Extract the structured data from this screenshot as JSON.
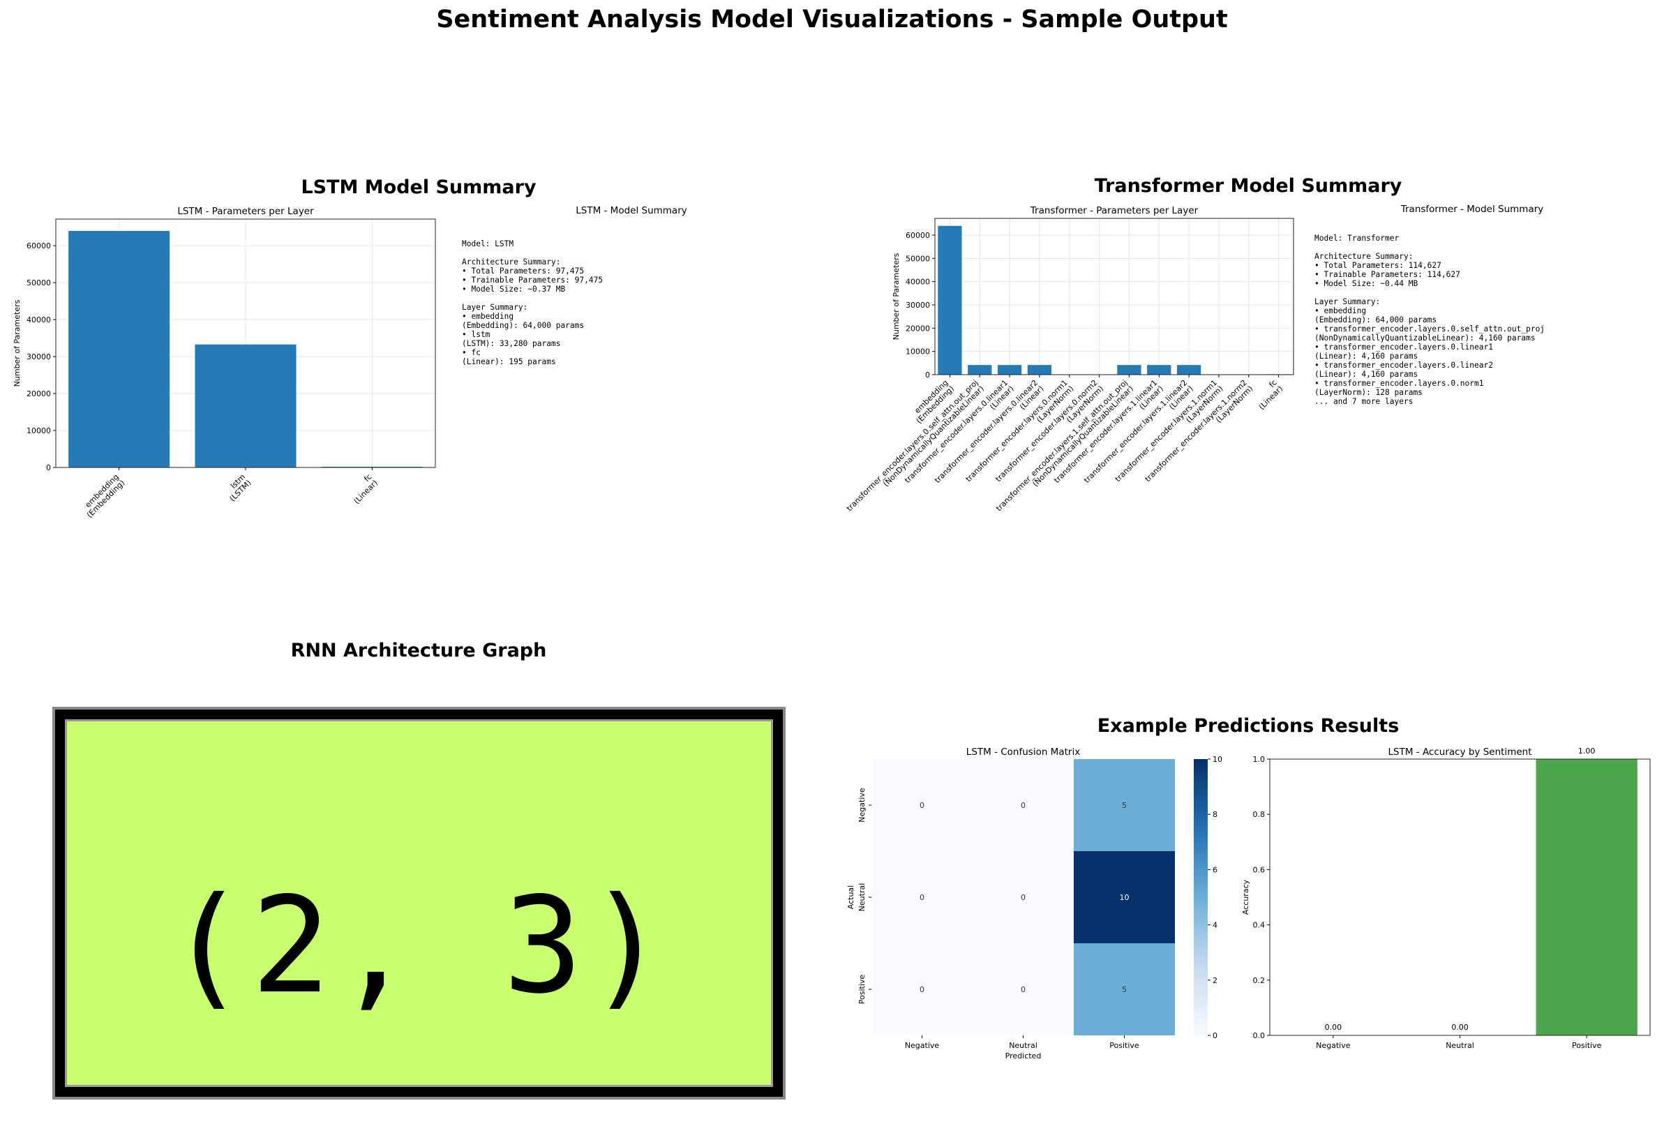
{
  "page": {
    "title": "Sentiment Analysis Model Visualizations - Sample Output"
  },
  "sections": {
    "lstm_summary": "LSTM Model Summary",
    "transformer_summary": "Transformer Model Summary",
    "rnn_graph": "RNN Architecture Graph",
    "predictions": "Example Predictions Results"
  },
  "lstm_text_panel": {
    "title": "LSTM - Model Summary",
    "lines": [
      "Model: LSTM",
      "",
      "Architecture Summary:",
      "• Total Parameters: 97,475",
      "• Trainable Parameters: 97,475",
      "• Model Size: ~0.37 MB",
      "",
      "Layer Summary:",
      "• embedding",
      "(Embedding): 64,000 params",
      "• lstm",
      "(LSTM): 33,280 params",
      "• fc",
      "(Linear): 195 params"
    ]
  },
  "transformer_text_panel": {
    "title": "Transformer - Model Summary",
    "lines": [
      "Model: Transformer",
      "",
      "Architecture Summary:",
      "• Total Parameters: 114,627",
      "• Trainable Parameters: 114,627",
      "• Model Size: ~0.44 MB",
      "",
      "Layer Summary:",
      "• embedding",
      "(Embedding): 64,000 params",
      "• transformer_encoder.layers.0.self_attn.out_proj",
      "(NonDynamicallyQuantizableLinear): 4,160 params",
      "• transformer_encoder.layers.0.linear1",
      "(Linear): 4,160 params",
      "• transformer_encoder.layers.0.linear2",
      "(Linear): 4,160 params",
      "• transformer_encoder.layers.0.norm1",
      "(LayerNorm): 128 params",
      "... and 7 more layers"
    ]
  },
  "rnn_graph_image": {
    "text": "(2, 3)",
    "fill_color": "#c8ff6e",
    "border_color": "#000000"
  },
  "colors": {
    "bar_blue": "#1f77b4",
    "bar_green": "#4ca64c",
    "grid": "#e6e6e6"
  },
  "chart_data": [
    {
      "id": "lstm_params",
      "type": "bar",
      "title": "LSTM - Parameters per Layer",
      "xlabel": "",
      "ylabel": "Number of Parameters",
      "categories": [
        [
          "embedding",
          "(Embedding)"
        ],
        [
          "lstm",
          "(LSTM)"
        ],
        [
          "fc",
          "(Linear)"
        ]
      ],
      "values": [
        64000,
        33280,
        195
      ],
      "ylim": [
        0,
        67200
      ],
      "yticks": [
        0,
        10000,
        20000,
        30000,
        40000,
        50000,
        60000
      ],
      "grid": true
    },
    {
      "id": "transformer_params",
      "type": "bar",
      "title": "Transformer - Parameters per Layer",
      "xlabel": "",
      "ylabel": "Number of Parameters",
      "categories": [
        [
          "embedding",
          "(Embedding)"
        ],
        [
          "transformer_encoder.layers.0.self_attn.out_proj",
          "(NonDynamicallyQuantizableLinear)"
        ],
        [
          "transformer_encoder.layers.0.linear1",
          "(Linear)"
        ],
        [
          "transformer_encoder.layers.0.linear2",
          "(Linear)"
        ],
        [
          "transformer_encoder.layers.0.norm1",
          "(LayerNorm)"
        ],
        [
          "transformer_encoder.layers.0.norm2",
          "(LayerNorm)"
        ],
        [
          "transformer_encoder.layers.1.self_attn.out_proj",
          "(NonDynamicallyQuantizableLinear)"
        ],
        [
          "transformer_encoder.layers.1.linear1",
          "(Linear)"
        ],
        [
          "transformer_encoder.layers.1.linear2",
          "(Linear)"
        ],
        [
          "transformer_encoder.layers.1.norm1",
          "(LayerNorm)"
        ],
        [
          "transformer_encoder.layers.1.norm2",
          "(LayerNorm)"
        ],
        [
          "fc",
          "(Linear)"
        ]
      ],
      "values": [
        64000,
        4160,
        4160,
        4160,
        128,
        128,
        4160,
        4160,
        4160,
        128,
        128,
        195
      ],
      "ylim": [
        0,
        67200
      ],
      "yticks": [
        0,
        10000,
        20000,
        30000,
        40000,
        50000,
        60000
      ],
      "grid": true
    },
    {
      "id": "confusion_matrix",
      "type": "heatmap",
      "title": "LSTM - Confusion Matrix",
      "xlabel": "Predicted",
      "ylabel": "Actual",
      "x_labels": [
        "Negative",
        "Neutral",
        "Positive"
      ],
      "y_labels": [
        "Negative",
        "Neutral",
        "Positive"
      ],
      "values": [
        [
          0,
          0,
          5
        ],
        [
          0,
          0,
          10
        ],
        [
          0,
          0,
          5
        ]
      ],
      "colorbar_ticks": [
        0,
        2,
        4,
        6,
        8,
        10
      ],
      "vmin": 0,
      "vmax": 10,
      "colormap": "Blues"
    },
    {
      "id": "accuracy_by_sentiment",
      "type": "bar",
      "title": "LSTM - Accuracy by Sentiment",
      "xlabel": "",
      "ylabel": "Accuracy",
      "categories": [
        "Negative",
        "Neutral",
        "Positive"
      ],
      "values": [
        0.0,
        0.0,
        1.0
      ],
      "labels": [
        "0.00",
        "0.00",
        "1.00"
      ],
      "ylim": [
        0,
        1.0
      ],
      "yticks": [
        "0.0",
        "0.2",
        "0.4",
        "0.6",
        "0.8",
        "1.0"
      ],
      "grid": false
    }
  ]
}
